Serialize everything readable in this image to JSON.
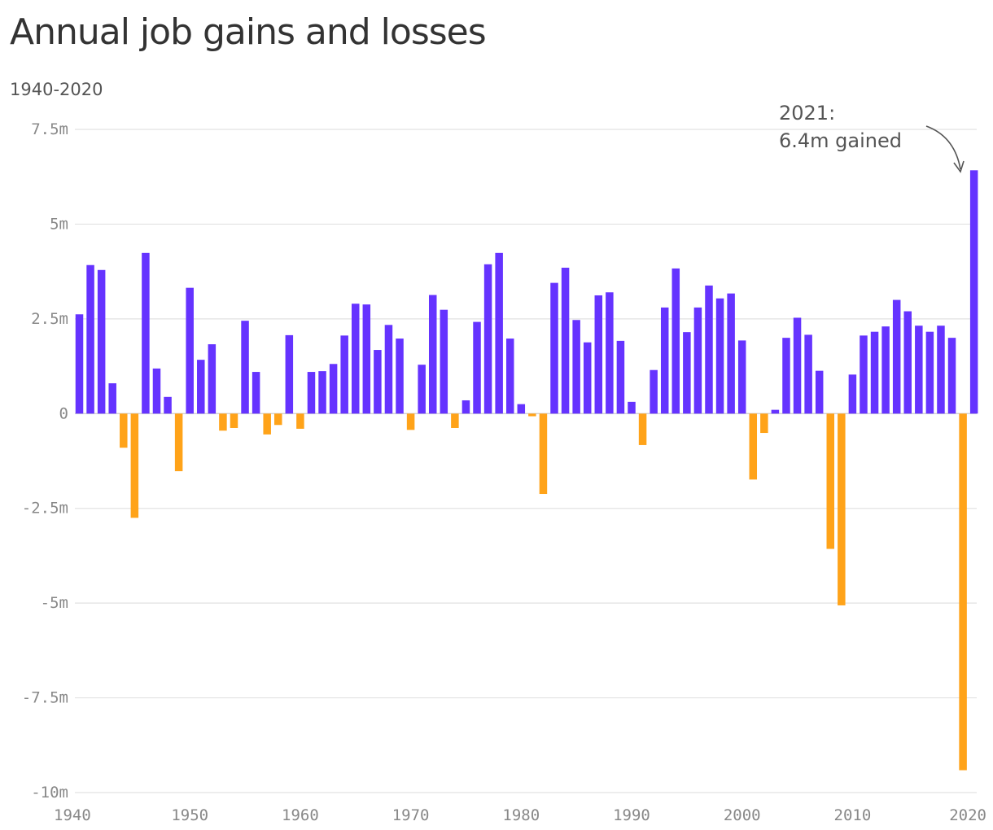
{
  "chart_data": {
    "type": "bar",
    "title": "Annual job gains and losses",
    "subtitle": "1940-2020",
    "xlabel": "",
    "ylabel": "",
    "ylim": [
      -10,
      7.5
    ],
    "y_ticks": [
      {
        "value": 7.5,
        "label": "7.5m"
      },
      {
        "value": 5,
        "label": "5m"
      },
      {
        "value": 2.5,
        "label": "2.5m"
      },
      {
        "value": 0,
        "label": "0"
      },
      {
        "value": -2.5,
        "label": "-2.5m"
      },
      {
        "value": -5,
        "label": "-5m"
      },
      {
        "value": -7.5,
        "label": "-7.5m"
      },
      {
        "value": -10,
        "label": "-10m"
      }
    ],
    "x_ticks": [
      {
        "year": 1940,
        "label": "1940"
      },
      {
        "year": 1950,
        "label": "1950"
      },
      {
        "year": 1960,
        "label": "1960"
      },
      {
        "year": 1970,
        "label": "1970"
      },
      {
        "year": 1980,
        "label": "1980"
      },
      {
        "year": 1990,
        "label": "1990"
      },
      {
        "year": 2000,
        "label": "2000"
      },
      {
        "year": 2010,
        "label": "2010"
      },
      {
        "year": 2020,
        "label": "2020"
      }
    ],
    "grid": true,
    "colors": {
      "gain": "#6533ff",
      "loss": "#ffa319",
      "grid": "#e2e2e2",
      "zero": "#cccccc"
    },
    "x": [
      1940,
      1941,
      1942,
      1943,
      1944,
      1945,
      1946,
      1947,
      1948,
      1949,
      1950,
      1951,
      1952,
      1953,
      1954,
      1955,
      1956,
      1957,
      1958,
      1959,
      1960,
      1961,
      1962,
      1963,
      1964,
      1965,
      1966,
      1967,
      1968,
      1969,
      1970,
      1971,
      1972,
      1973,
      1974,
      1975,
      1976,
      1977,
      1978,
      1979,
      1980,
      1981,
      1982,
      1983,
      1984,
      1985,
      1986,
      1987,
      1988,
      1989,
      1990,
      1991,
      1992,
      1993,
      1994,
      1995,
      1996,
      1997,
      1998,
      1999,
      2000,
      2001,
      2002,
      2003,
      2004,
      2005,
      2006,
      2007,
      2008,
      2009,
      2010,
      2011,
      2012,
      2013,
      2014,
      2015,
      2016,
      2017,
      2018,
      2019,
      2020,
      2021
    ],
    "values": [
      2.62,
      3.92,
      3.79,
      0.8,
      -0.9,
      -2.75,
      4.24,
      1.19,
      0.44,
      -1.52,
      3.32,
      1.42,
      1.83,
      -0.45,
      -0.38,
      2.45,
      1.1,
      -0.55,
      -0.3,
      2.07,
      -0.4,
      1.1,
      1.12,
      1.31,
      2.06,
      2.9,
      2.88,
      1.68,
      2.34,
      1.98,
      -0.43,
      1.29,
      3.13,
      2.74,
      -0.38,
      0.35,
      2.42,
      3.94,
      4.24,
      1.98,
      0.25,
      -0.07,
      -2.12,
      3.45,
      3.85,
      2.47,
      1.88,
      3.12,
      3.2,
      1.92,
      0.31,
      -0.83,
      1.15,
      2.8,
      3.83,
      2.15,
      2.8,
      3.38,
      3.04,
      3.17,
      1.93,
      -1.74,
      -0.51,
      0.1,
      2.0,
      2.53,
      2.08,
      1.13,
      -3.57,
      -5.06,
      1.03,
      2.06,
      2.16,
      2.3,
      3.0,
      2.7,
      2.32,
      2.16,
      2.32,
      2.0,
      -9.41,
      6.42
    ],
    "annotation": {
      "year": 2021,
      "line1": "2021:",
      "line2": "6.4m gained"
    }
  }
}
